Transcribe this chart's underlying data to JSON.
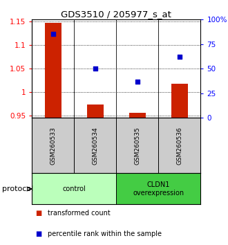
{
  "title": "GDS3510 / 205977_s_at",
  "samples": [
    "GSM260533",
    "GSM260534",
    "GSM260535",
    "GSM260536"
  ],
  "transformed_counts": [
    1.148,
    0.973,
    0.956,
    1.018
  ],
  "percentile_ranks": [
    85,
    50,
    37,
    62
  ],
  "ylim_left": [
    0.945,
    1.155
  ],
  "ylim_right": [
    0,
    100
  ],
  "yticks_left": [
    0.95,
    1.0,
    1.05,
    1.1,
    1.15
  ],
  "ytick_labels_left": [
    "0.95",
    "1",
    "1.05",
    "1.1",
    "1.15"
  ],
  "yticks_right": [
    0,
    25,
    50,
    75,
    100
  ],
  "ytick_labels_right": [
    "0",
    "25",
    "50",
    "75",
    "100%"
  ],
  "bar_color": "#cc2200",
  "dot_color": "#0000cc",
  "groups": [
    {
      "label": "control",
      "samples": [
        0,
        1
      ],
      "color": "#bbffbb"
    },
    {
      "label": "CLDN1\noverexpression",
      "samples": [
        2,
        3
      ],
      "color": "#44cc44"
    }
  ],
  "sample_box_color": "#cccccc",
  "protocol_label": "protocol",
  "legend_items": [
    {
      "color": "#cc2200",
      "label": "transformed count"
    },
    {
      "color": "#0000cc",
      "label": "percentile rank within the sample"
    }
  ],
  "bar_width": 0.4,
  "baseline": 0.945
}
